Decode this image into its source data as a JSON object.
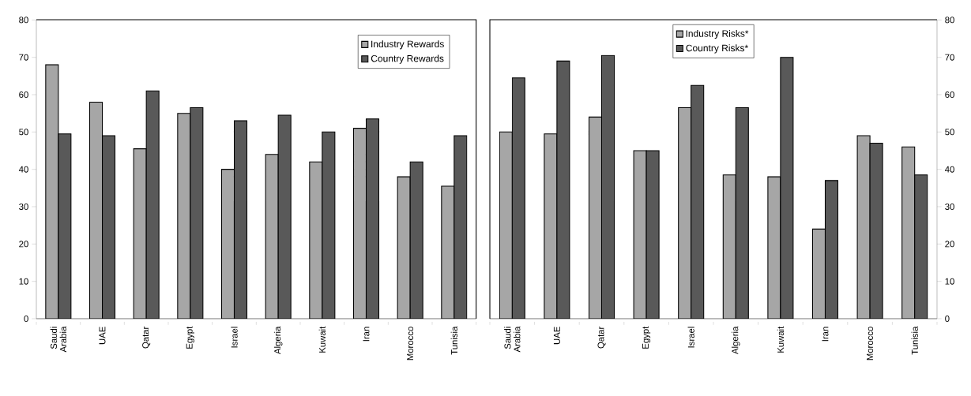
{
  "chart_data": [
    {
      "type": "bar",
      "categories": [
        "Saudi Arabia",
        "UAE",
        "Qatar",
        "Egypt",
        "Israel",
        "Algeria",
        "Kuwait",
        "Iran",
        "Morocco",
        "Tunisia"
      ],
      "series": [
        {
          "name": "Industry Rewards",
          "color": "#a6a6a6",
          "values": [
            68,
            58,
            45.5,
            55,
            40,
            44,
            42,
            51,
            38,
            35.5
          ]
        },
        {
          "name": "Country Rewards",
          "color": "#595959",
          "values": [
            49.5,
            49,
            61,
            56.5,
            53,
            54.5,
            50,
            53.5,
            42,
            49
          ]
        }
      ],
      "ylim": [
        0,
        80
      ],
      "yticks": [
        0,
        10,
        20,
        30,
        40,
        50,
        60,
        70,
        80
      ],
      "legend": "top right"
    },
    {
      "type": "bar",
      "categories": [
        "Saudi Arabia",
        "UAE",
        "Qatar",
        "Egypt",
        "Israel",
        "Algeria",
        "Kuwait",
        "Iran",
        "Morocco",
        "Tunisia"
      ],
      "series": [
        {
          "name": "Industry Risks*",
          "color": "#a6a6a6",
          "values": [
            50,
            49.5,
            54,
            45,
            56.5,
            38.5,
            38,
            24,
            49,
            46
          ]
        },
        {
          "name": "Country Risks*",
          "color": "#595959",
          "values": [
            64.5,
            69,
            70.5,
            45,
            62.5,
            56.5,
            70,
            37,
            47,
            38.5
          ]
        }
      ],
      "ylim": [
        0,
        80
      ],
      "yticks": [
        0,
        10,
        20,
        30,
        40,
        50,
        60,
        70,
        80
      ],
      "legend": "top"
    }
  ]
}
